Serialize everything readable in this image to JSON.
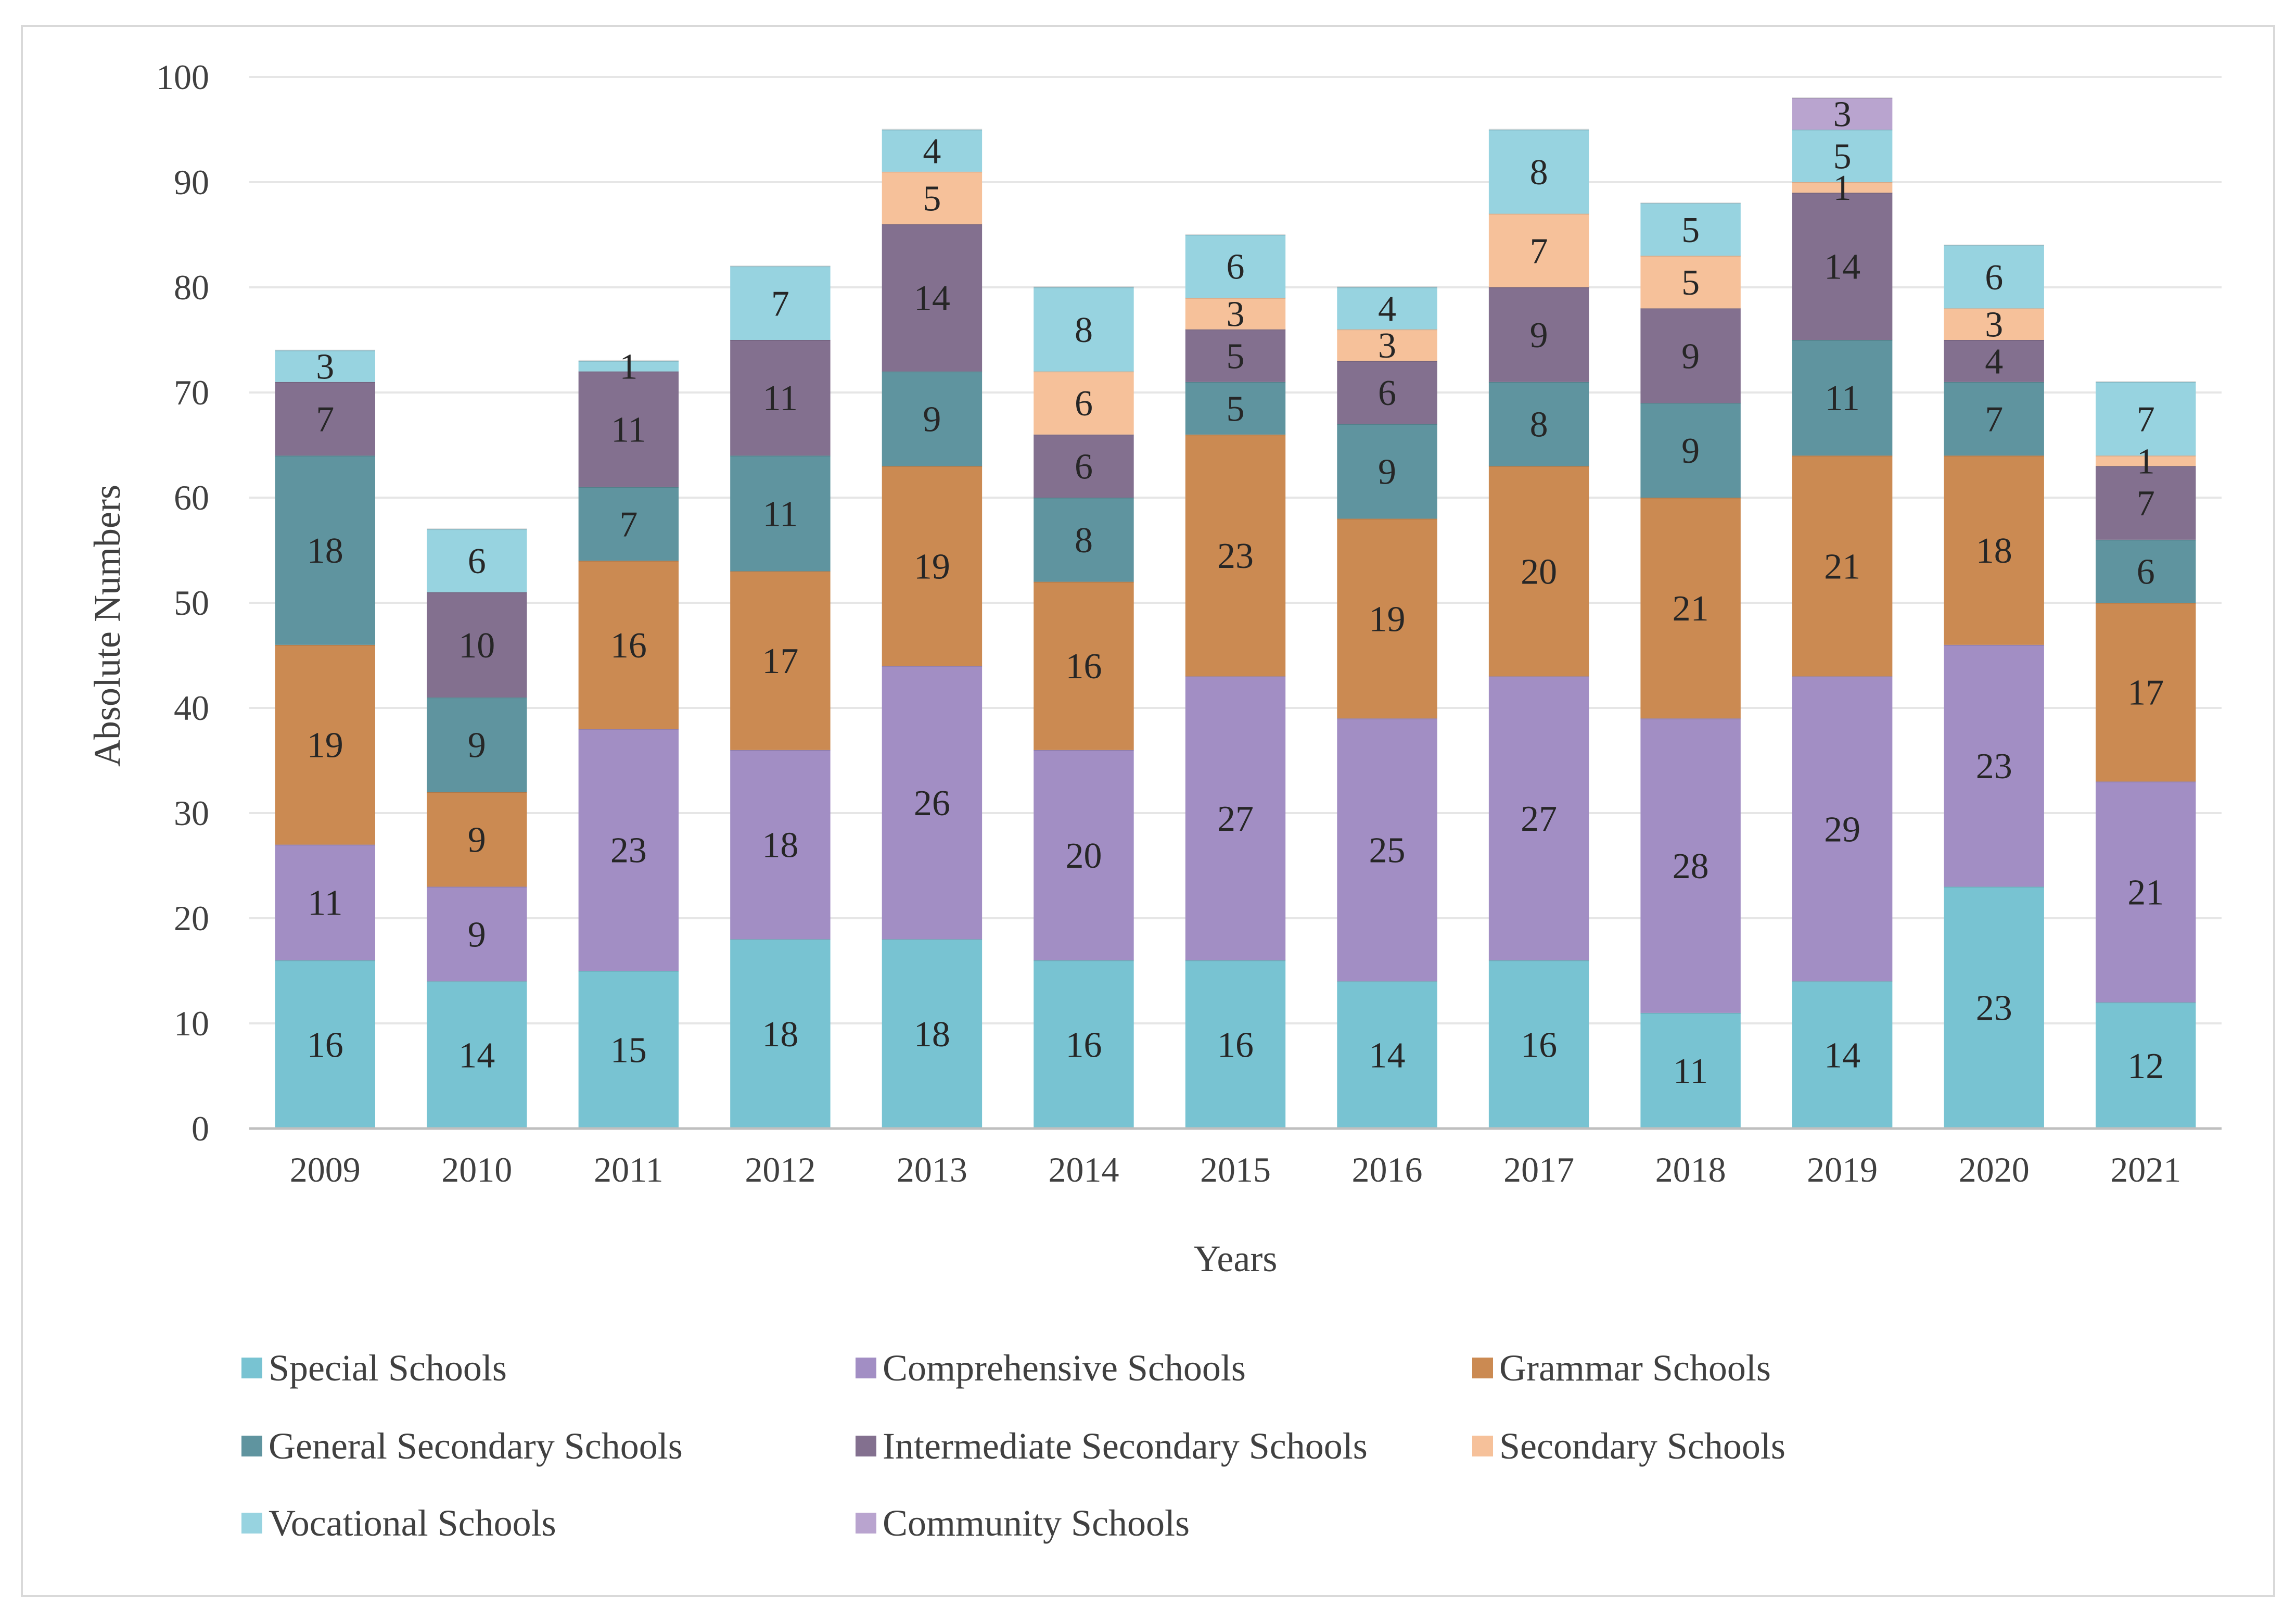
{
  "chart_data": {
    "type": "bar",
    "stacked": true,
    "title": "",
    "xlabel": "Years",
    "ylabel": "Absolute Numbers",
    "ylim": [
      0,
      100
    ],
    "yticks": [
      0,
      10,
      20,
      30,
      40,
      50,
      60,
      70,
      80,
      90,
      100
    ],
    "grid": true,
    "legend_position": "bottom",
    "categories": [
      "2009",
      "2010",
      "2011",
      "2012",
      "2013",
      "2014",
      "2015",
      "2016",
      "2017",
      "2018",
      "2019",
      "2020",
      "2021"
    ],
    "series": [
      {
        "name": "Special Schools",
        "color": "#78C3D2",
        "values": [
          16,
          14,
          15,
          18,
          18,
          16,
          16,
          14,
          16,
          11,
          14,
          23,
          12
        ]
      },
      {
        "name": "Comprehensive Schools",
        "color": "#A28EC4",
        "values": [
          11,
          9,
          23,
          18,
          26,
          20,
          27,
          25,
          27,
          28,
          29,
          23,
          21
        ]
      },
      {
        "name": "Grammar Schools",
        "color": "#CB8A52",
        "values": [
          19,
          9,
          16,
          17,
          19,
          16,
          23,
          19,
          20,
          21,
          21,
          18,
          17
        ]
      },
      {
        "name": "General Secondary Schools",
        "color": "#5F949F",
        "values": [
          18,
          9,
          7,
          11,
          9,
          8,
          5,
          9,
          8,
          9,
          11,
          7,
          6
        ]
      },
      {
        "name": "Intermediate Secondary Schools",
        "color": "#83708F",
        "values": [
          7,
          10,
          11,
          11,
          14,
          6,
          5,
          6,
          9,
          9,
          14,
          4,
          7
        ]
      },
      {
        "name": "Secondary Schools",
        "color": "#F6C19A",
        "values": [
          0,
          0,
          0,
          0,
          5,
          6,
          3,
          3,
          7,
          5,
          1,
          3,
          1
        ]
      },
      {
        "name": "Vocational Schools",
        "color": "#97D3E0",
        "values": [
          3,
          6,
          1,
          7,
          4,
          8,
          6,
          4,
          8,
          5,
          5,
          6,
          7
        ]
      },
      {
        "name": "Community Schools",
        "color": "#B9A4CF",
        "values": [
          0,
          0,
          0,
          0,
          0,
          0,
          0,
          0,
          0,
          0,
          3,
          0,
          0
        ]
      }
    ]
  }
}
